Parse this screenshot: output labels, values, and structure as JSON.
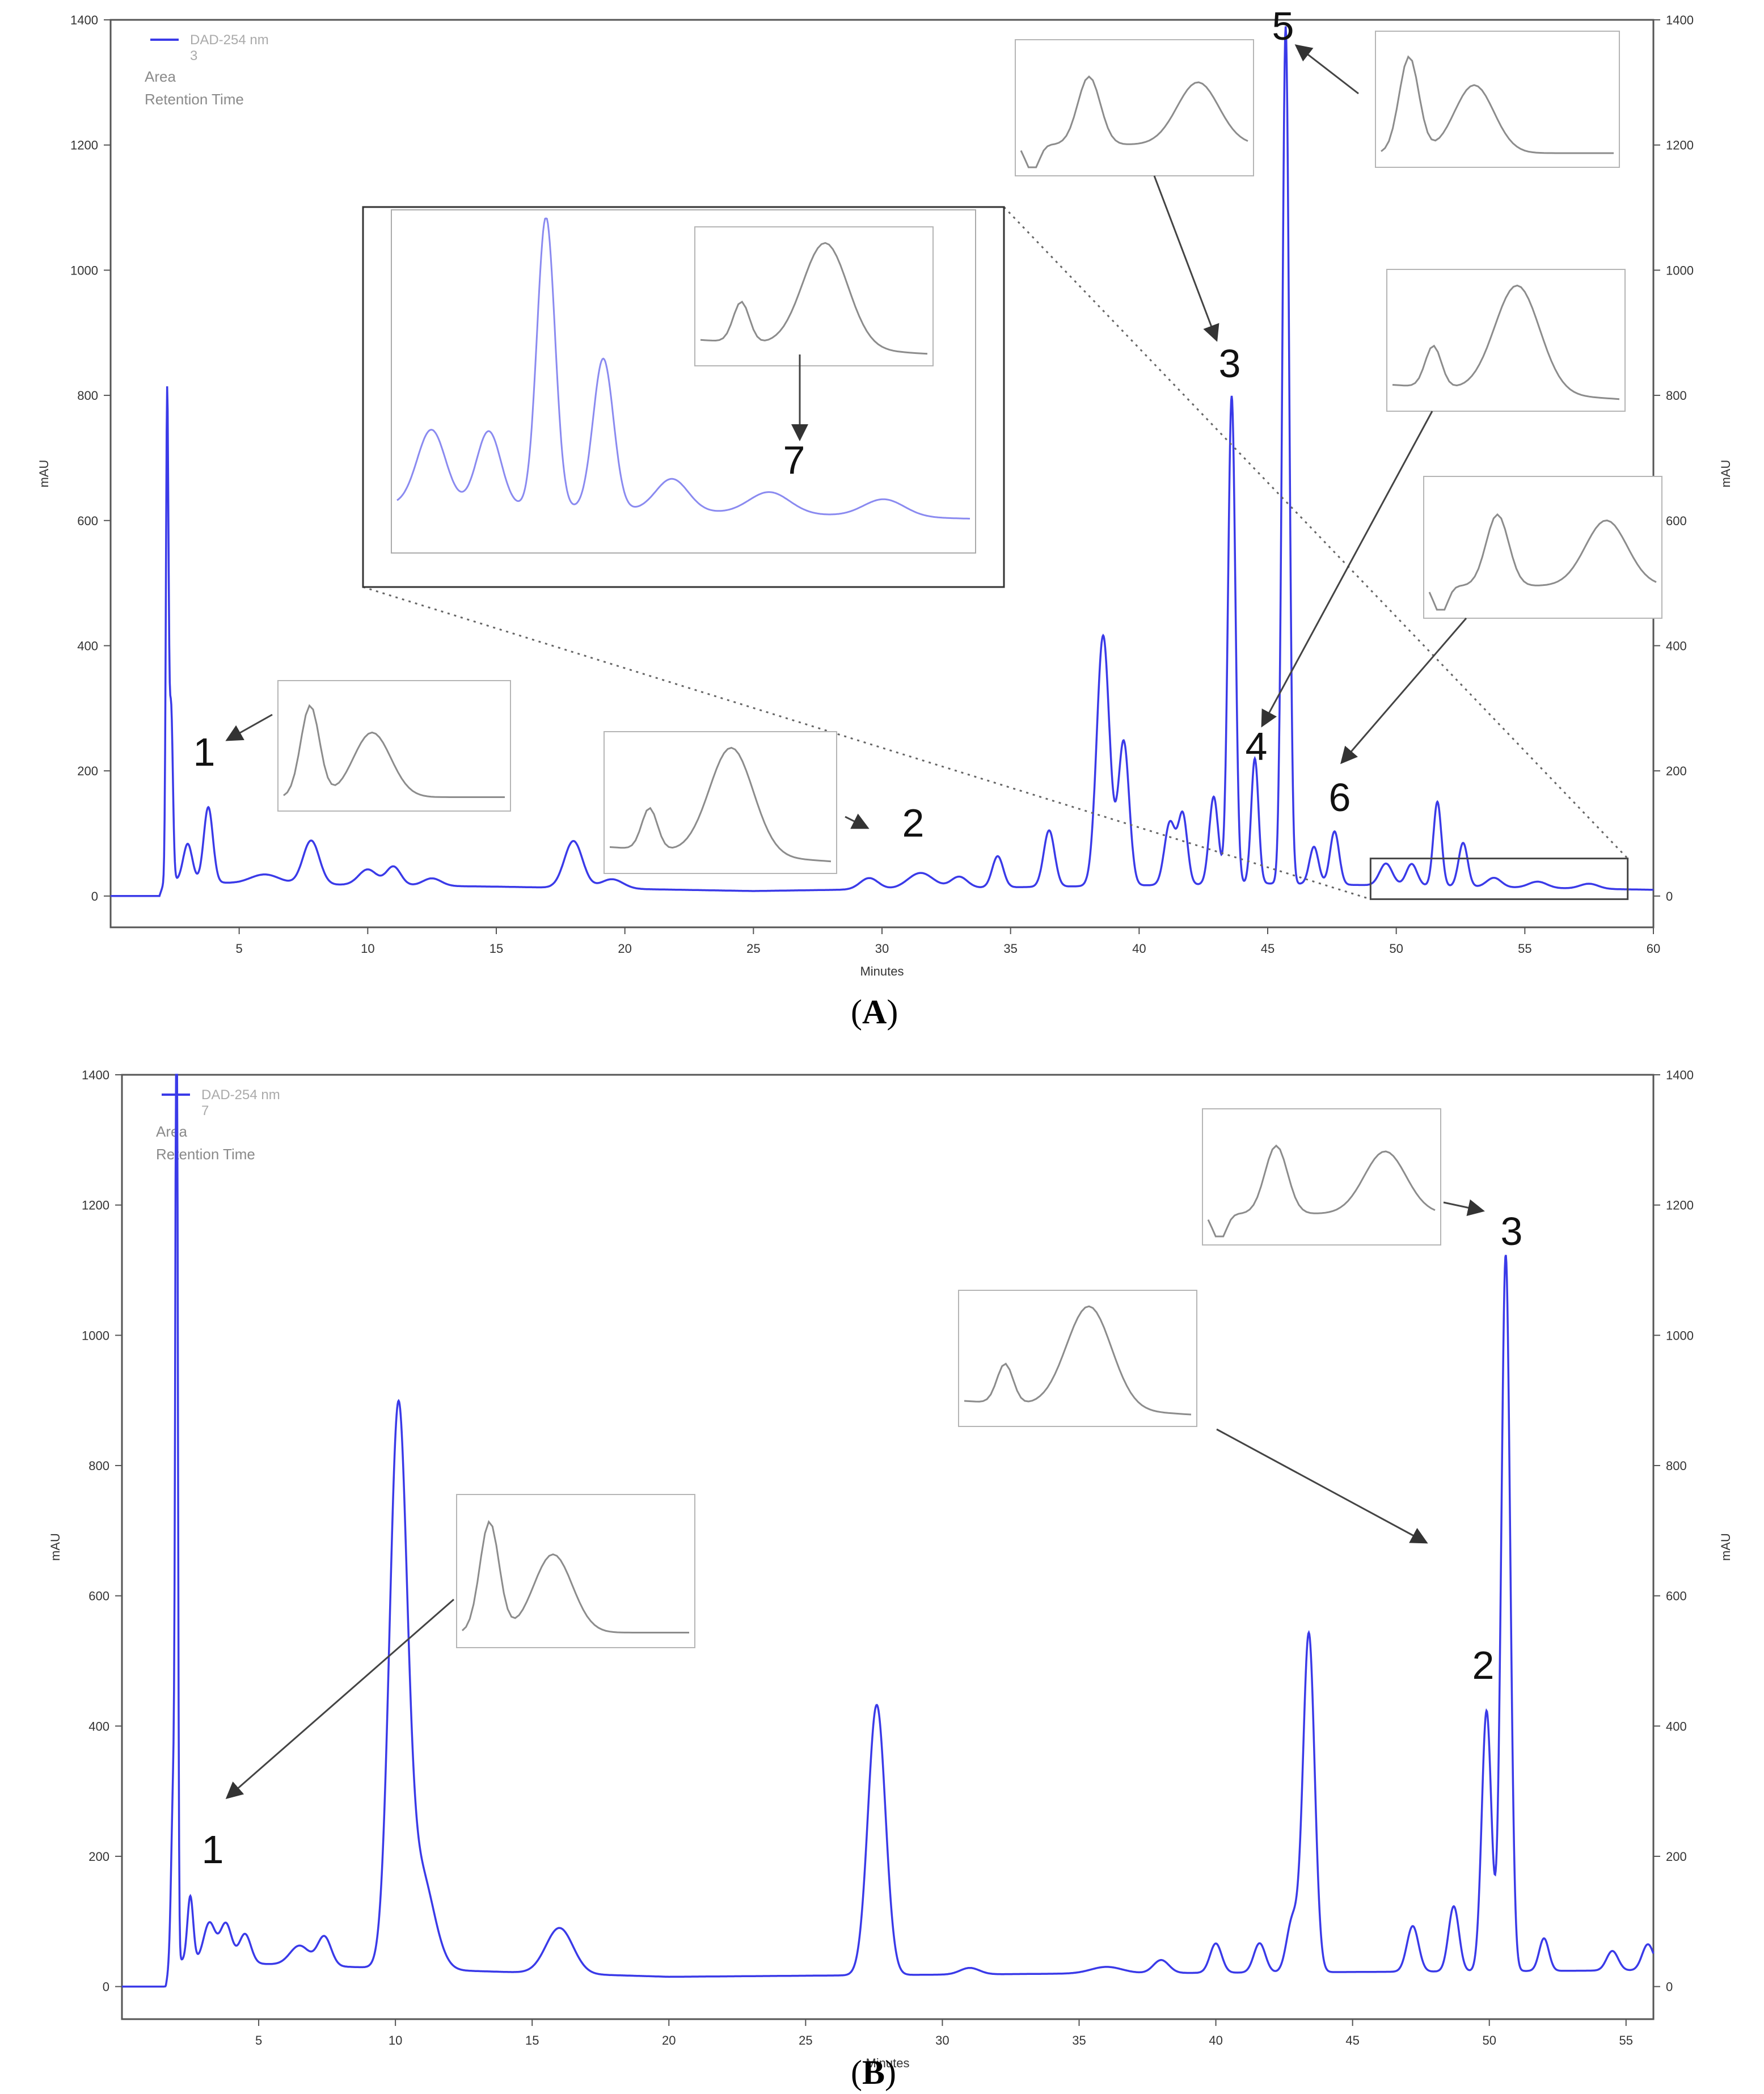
{
  "panels": [
    {
      "caption_open": "(",
      "caption_letter": "A",
      "caption_close": ")",
      "legend": {
        "series_label": "DAD-254 nm",
        "series_sub": "3",
        "area_label": "Area",
        "rt_label": "Retention Time"
      },
      "colors": {
        "trace": "#3a3ae8",
        "axis": "#555555",
        "text": "#333333",
        "inset": "#8c8c8c"
      }
    },
    {
      "caption_open": "(",
      "caption_letter": "B",
      "caption_close": ")",
      "legend": {
        "series_label": "DAD-254 nm",
        "series_sub": "7",
        "area_label": "Area",
        "rt_label": "Retention Time"
      },
      "colors": {
        "trace": "#3a3ae8",
        "axis": "#555555",
        "text": "#333333",
        "inset": "#8c8c8c"
      }
    }
  ],
  "chart_data": [
    {
      "type": "line",
      "xlabel": "Minutes",
      "ylabel": "mAU",
      "ylabel_right": "mAU",
      "xlim": [
        0,
        60
      ],
      "ylim": [
        -50,
        1400
      ],
      "xticks": [
        5,
        10,
        15,
        20,
        25,
        30,
        35,
        40,
        45,
        50,
        55,
        60
      ],
      "yticks": [
        0,
        200,
        400,
        600,
        800,
        1000,
        1200,
        1400
      ],
      "peaks": [
        [
          2.2,
          760,
          0.07
        ],
        [
          2.35,
          280,
          0.1
        ],
        [
          3.0,
          60,
          0.25
        ],
        [
          3.8,
          120,
          0.25
        ],
        [
          6.0,
          15,
          0.8
        ],
        [
          7.8,
          70,
          0.45
        ],
        [
          10.0,
          25,
          0.5
        ],
        [
          11.0,
          30,
          0.4
        ],
        [
          12.5,
          12,
          0.5
        ],
        [
          18.0,
          75,
          0.5
        ],
        [
          19.5,
          15,
          0.6
        ],
        [
          29.5,
          18,
          0.5
        ],
        [
          31.5,
          25,
          0.7
        ],
        [
          33.0,
          18,
          0.45
        ],
        [
          34.5,
          50,
          0.3
        ],
        [
          36.5,
          90,
          0.3
        ],
        [
          38.6,
          400,
          0.35
        ],
        [
          39.4,
          230,
          0.3
        ],
        [
          41.2,
          100,
          0.3
        ],
        [
          41.7,
          110,
          0.25
        ],
        [
          42.9,
          140,
          0.25
        ],
        [
          43.6,
          780,
          0.2
        ],
        [
          44.5,
          200,
          0.2
        ],
        [
          45.7,
          1370,
          0.19
        ],
        [
          46.8,
          60,
          0.25
        ],
        [
          47.6,
          85,
          0.25
        ],
        [
          49.6,
          35,
          0.35
        ],
        [
          50.6,
          35,
          0.3
        ],
        [
          51.6,
          135,
          0.22
        ],
        [
          52.6,
          70,
          0.25
        ],
        [
          53.8,
          15,
          0.4
        ],
        [
          55.5,
          10,
          0.5
        ],
        [
          57.5,
          8,
          0.5
        ]
      ],
      "baseline": [
        [
          0,
          0
        ],
        [
          1.9,
          0
        ],
        [
          2.1,
          25
        ],
        [
          5,
          20
        ],
        [
          15,
          15
        ],
        [
          25,
          8
        ],
        [
          45,
          20
        ],
        [
          60,
          10
        ]
      ],
      "annotations": [
        {
          "label": "1",
          "x": 3.8,
          "y": 120
        },
        {
          "label": "2",
          "x": 31.5,
          "y": 25
        },
        {
          "label": "3",
          "x": 43.6,
          "y": 780
        },
        {
          "label": "4",
          "x": 44.5,
          "y": 200
        },
        {
          "label": "5",
          "x": 45.7,
          "y": 1370
        },
        {
          "label": "6",
          "x": 47.6,
          "y": 85
        },
        {
          "label": "7",
          "x": 0,
          "y": 0
        }
      ]
    },
    {
      "type": "line",
      "xlabel": "Minutes",
      "ylabel": "mAU",
      "ylabel_right": "mAU",
      "xlim": [
        0,
        56
      ],
      "ylim": [
        -50,
        1400
      ],
      "xticks": [
        5,
        10,
        15,
        20,
        25,
        30,
        35,
        40,
        45,
        50,
        55
      ],
      "yticks": [
        0,
        200,
        400,
        600,
        800,
        1000,
        1200,
        1400
      ],
      "peaks": [
        [
          2.0,
          1500,
          0.06
        ],
        [
          1.9,
          300,
          0.12
        ],
        [
          2.5,
          100,
          0.15
        ],
        [
          3.2,
          60,
          0.3
        ],
        [
          3.8,
          60,
          0.3
        ],
        [
          4.5,
          45,
          0.3
        ],
        [
          6.5,
          30,
          0.5
        ],
        [
          7.4,
          45,
          0.35
        ],
        [
          10.1,
          830,
          0.45
        ],
        [
          10.9,
          150,
          0.7
        ],
        [
          16.0,
          70,
          0.7
        ],
        [
          27.6,
          415,
          0.45
        ],
        [
          31.0,
          10,
          0.5
        ],
        [
          36.0,
          10,
          0.8
        ],
        [
          38.0,
          20,
          0.4
        ],
        [
          40.0,
          45,
          0.3
        ],
        [
          41.6,
          45,
          0.3
        ],
        [
          43.4,
          520,
          0.3
        ],
        [
          42.8,
          80,
          0.3
        ],
        [
          47.2,
          70,
          0.3
        ],
        [
          48.7,
          100,
          0.27
        ],
        [
          49.9,
          400,
          0.25
        ],
        [
          50.6,
          1100,
          0.23
        ],
        [
          52.0,
          50,
          0.25
        ],
        [
          54.5,
          30,
          0.3
        ],
        [
          55.8,
          40,
          0.3
        ]
      ],
      "baseline": [
        [
          0,
          0
        ],
        [
          1.6,
          0
        ],
        [
          1.8,
          40
        ],
        [
          5,
          35
        ],
        [
          12,
          25
        ],
        [
          20,
          15
        ],
        [
          35,
          20
        ],
        [
          56,
          25
        ]
      ],
      "annotations": [
        {
          "label": "1",
          "x": 3.5,
          "y": 70
        },
        {
          "label": "2",
          "x": 49.9,
          "y": 400
        },
        {
          "label": "3",
          "x": 50.6,
          "y": 1100
        }
      ]
    }
  ]
}
